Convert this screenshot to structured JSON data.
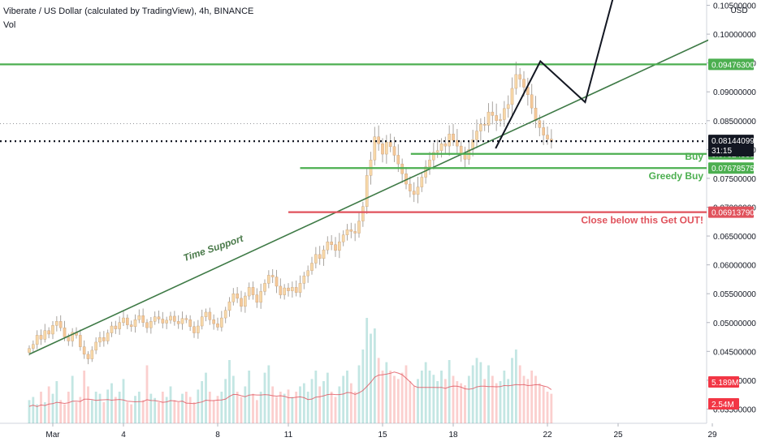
{
  "header": {
    "title": "Viberate / US Dollar (calculated by TradingView), 4h, BINANCE",
    "volume_label": "Vol"
  },
  "chart_data": {
    "type": "candlestick",
    "currency": "USD",
    "x_ticks": [
      "Mar",
      "4",
      "8",
      "11",
      "15",
      "18",
      "22",
      "25",
      "29"
    ],
    "y_ticks": [
      "0.10500000",
      "0.10000000",
      "0.09500000",
      "0.09000000",
      "0.08500000",
      "0.08000000",
      "0.07500000",
      "0.07000000",
      "0.06500000",
      "0.06000000",
      "0.05500000",
      "0.05000000",
      "0.04500000",
      "0.04000000",
      "0.03500000"
    ],
    "ylim": [
      0.0345,
      0.1055
    ],
    "xlim": [
      "Feb 28",
      "Mar 29"
    ],
    "price_levels": [
      {
        "value": 0.094763,
        "label": "0.09476300",
        "color": "#4caf50",
        "text": ""
      },
      {
        "value": 0.07924,
        "label": "0.07924000",
        "color": "#4caf50",
        "text": "Buy"
      },
      {
        "value": 0.07678575,
        "label": "0.07678575",
        "color": "#4caf50",
        "text": "Greedy Buy"
      },
      {
        "value": 0.0691379,
        "label": "0.06913790",
        "color": "#e0525c",
        "text": "Close below this Get OUT!"
      }
    ],
    "last_price": {
      "value": 0.08144099,
      "label": "0.08144099",
      "countdown": "31:15",
      "color": "#131722"
    },
    "volume_labels": [
      {
        "label": "5.189M",
        "color": "#f23645"
      },
      {
        "label": "2.54M",
        "color": "#f23645"
      }
    ],
    "annotations": [
      {
        "text": "Time Support",
        "color": "#4a7a4a"
      }
    ],
    "trendline": {
      "name": "Time Support",
      "color": "#3e7a46",
      "points": [
        [
          "Feb 28",
          0.0445
        ],
        [
          "Mar 29",
          0.0993
        ]
      ]
    },
    "projection": {
      "color": "#131722",
      "points": [
        [
          "Mar 19.8",
          0.0802
        ],
        [
          "Mar 21.7",
          0.0953
        ],
        [
          "Mar 23.6",
          0.0882
        ],
        [
          "Mar 24.8",
          0.1065
        ]
      ]
    },
    "candles_start": "Feb 28",
    "candles_per_day": 6,
    "candles_close": [
      0.0455,
      0.0462,
      0.0478,
      0.0471,
      0.0486,
      0.048,
      0.0495,
      0.0502,
      0.0491,
      0.0475,
      0.0468,
      0.0483,
      0.0478,
      0.0458,
      0.0445,
      0.0437,
      0.0452,
      0.0466,
      0.0474,
      0.0468,
      0.0482,
      0.0494,
      0.0489,
      0.05,
      0.0508,
      0.0496,
      0.0493,
      0.0505,
      0.0512,
      0.05,
      0.0491,
      0.0502,
      0.051,
      0.0506,
      0.0499,
      0.0504,
      0.0511,
      0.0502,
      0.0498,
      0.0507,
      0.0505,
      0.0493,
      0.0482,
      0.0494,
      0.051,
      0.0518,
      0.0505,
      0.0498,
      0.0492,
      0.0508,
      0.0521,
      0.0536,
      0.055,
      0.0542,
      0.0528,
      0.0546,
      0.0561,
      0.0548,
      0.0535,
      0.0554,
      0.0568,
      0.0582,
      0.0579,
      0.0563,
      0.0548,
      0.056,
      0.0555,
      0.0561,
      0.0552,
      0.0568,
      0.0581,
      0.059,
      0.0603,
      0.0618,
      0.0611,
      0.0626,
      0.064,
      0.0635,
      0.0625,
      0.064,
      0.0652,
      0.0661,
      0.0658,
      0.0655,
      0.0676,
      0.0701,
      0.0755,
      0.0782,
      0.0822,
      0.081,
      0.0792,
      0.0813,
      0.0805,
      0.079,
      0.0775,
      0.0758,
      0.074,
      0.0728,
      0.0722,
      0.0735,
      0.0752,
      0.077,
      0.0782,
      0.0795,
      0.0798,
      0.081,
      0.0806,
      0.0827,
      0.0816,
      0.0806,
      0.0793,
      0.0783,
      0.08,
      0.0817,
      0.0832,
      0.0844,
      0.0842,
      0.0865,
      0.0859,
      0.085,
      0.0852,
      0.0871,
      0.0878,
      0.0906,
      0.093,
      0.0922,
      0.0908,
      0.0895,
      0.0872,
      0.085,
      0.0838,
      0.0825,
      0.0818,
      0.0814
    ],
    "volume": [
      0.22,
      0.25,
      0.18,
      0.3,
      0.2,
      0.35,
      0.28,
      0.4,
      0.22,
      0.18,
      0.3,
      0.45,
      0.2,
      0.25,
      0.5,
      0.35,
      0.22,
      0.3,
      0.28,
      0.2,
      0.32,
      0.38,
      0.25,
      0.3,
      0.42,
      0.2,
      0.18,
      0.26,
      0.3,
      0.22,
      0.55,
      0.28,
      0.24,
      0.2,
      0.3,
      0.25,
      0.35,
      0.22,
      0.2,
      0.28,
      0.3,
      0.25,
      0.2,
      0.32,
      0.4,
      0.48,
      0.3,
      0.22,
      0.26,
      0.3,
      0.42,
      0.6,
      0.45,
      0.3,
      0.25,
      0.35,
      0.5,
      0.28,
      0.22,
      0.3,
      0.48,
      0.55,
      0.35,
      0.25,
      0.3,
      0.28,
      0.32,
      0.25,
      0.3,
      0.35,
      0.38,
      0.3,
      0.42,
      0.5,
      0.35,
      0.4,
      0.48,
      0.3,
      0.25,
      0.35,
      0.45,
      0.5,
      0.38,
      0.3,
      0.55,
      0.7,
      1.0,
      0.85,
      0.9,
      0.62,
      0.5,
      0.58,
      0.5,
      0.45,
      0.42,
      0.48,
      0.55,
      0.4,
      0.35,
      0.42,
      0.5,
      0.58,
      0.5,
      0.46,
      0.4,
      0.5,
      0.42,
      0.6,
      0.45,
      0.4,
      0.38,
      0.36,
      0.45,
      0.55,
      0.62,
      0.58,
      0.42,
      0.55,
      0.45,
      0.38,
      0.4,
      0.5,
      0.42,
      0.62,
      0.7,
      0.55,
      0.45,
      0.42,
      0.5,
      0.45,
      0.38,
      0.35,
      0.3,
      0.28
    ]
  }
}
